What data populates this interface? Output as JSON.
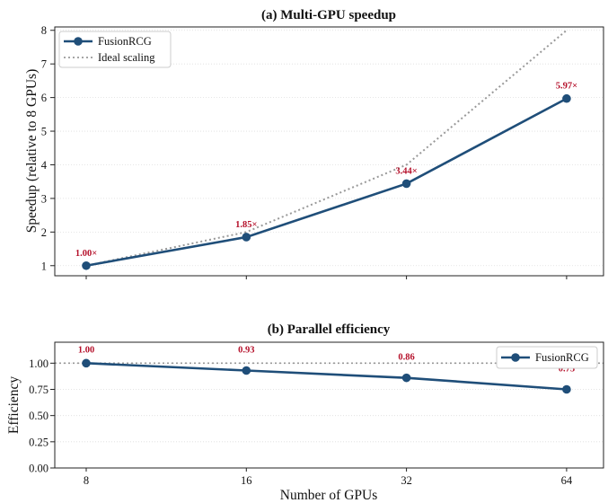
{
  "colors": {
    "series": "#1f4e79",
    "ideal": "#999999",
    "annotation": "#b5112b",
    "grid": "#dddddd",
    "axis": "#222222"
  },
  "chart_data": [
    {
      "type": "line",
      "title": "(a)  Multi-GPU speedup",
      "xlabel": "",
      "ylabel": "Speedup (relative to 8 GPUs)",
      "x": [
        8,
        16,
        32,
        64
      ],
      "x_scale": "log2",
      "ylim": [
        0.7,
        8.1
      ],
      "yticks": [
        1,
        2,
        3,
        4,
        5,
        6,
        7,
        8
      ],
      "grid": "horizontal",
      "legend": "top-left",
      "series": [
        {
          "name": "FusionRCG",
          "values": [
            1.0,
            1.85,
            3.44,
            5.97
          ],
          "style": "solid",
          "marker": "circle"
        },
        {
          "name": "Ideal scaling",
          "values": [
            1,
            2,
            4,
            8
          ],
          "style": "dotted",
          "marker": "none"
        }
      ],
      "annotations": [
        "1.00×",
        "1.85×",
        "3.44×",
        "5.97×"
      ]
    },
    {
      "type": "line",
      "title": "(b)  Parallel efficiency",
      "xlabel": "Number of GPUs",
      "ylabel": "Efficiency",
      "x": [
        8,
        16,
        32,
        64
      ],
      "x_scale": "log2",
      "xticks": [
        "8",
        "16",
        "32",
        "64"
      ],
      "ylim": [
        0,
        1.2
      ],
      "yticks": [
        "0.00",
        "0.25",
        "0.50",
        "0.75",
        "1.00"
      ],
      "grid": "horizontal",
      "legend": "top-right",
      "series": [
        {
          "name": "FusionRCG",
          "values": [
            1.0,
            0.93,
            0.86,
            0.75
          ],
          "style": "solid",
          "marker": "circle"
        }
      ],
      "reference_line": 1.0,
      "annotations": [
        "1.00",
        "0.93",
        "0.86",
        "0.75"
      ]
    }
  ]
}
